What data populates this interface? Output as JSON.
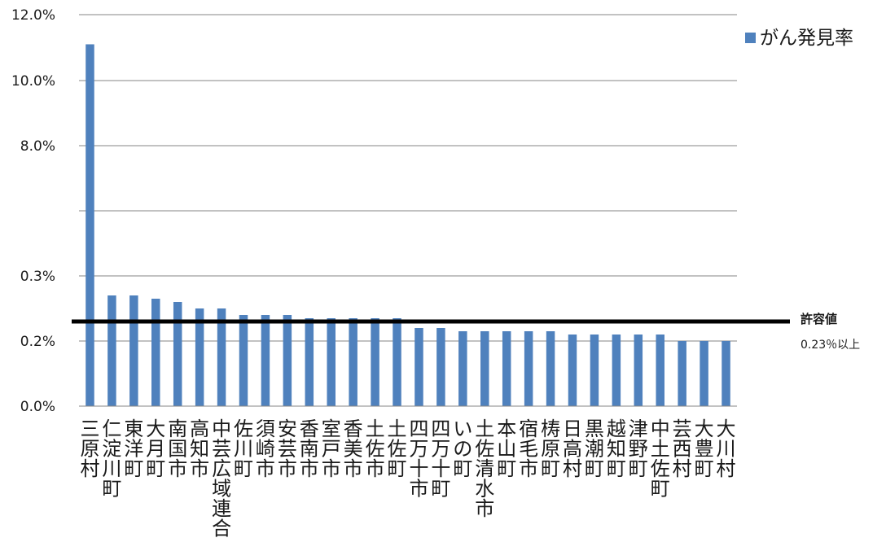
{
  "chart_data": {
    "type": "bar",
    "title": "",
    "xlabel": "",
    "ylabel": "",
    "y_axis": {
      "ticks": [
        "0.0%",
        "0.2%",
        "0.3%",
        "8.0%",
        "10.0%",
        "12.0%"
      ],
      "scale": "broken"
    },
    "grid": true,
    "legend_position": "top-right",
    "colors": {
      "bar": "#4f81bd",
      "threshold": "#000000",
      "grid": "#868686"
    },
    "series": [
      {
        "name": "がん発見率",
        "values": [
          11.1,
          0.27,
          0.27,
          0.265,
          0.26,
          0.25,
          0.25,
          0.24,
          0.24,
          0.24,
          0.235,
          0.235,
          0.235,
          0.235,
          0.235,
          0.22,
          0.22,
          0.215,
          0.215,
          0.215,
          0.215,
          0.215,
          0.21,
          0.21,
          0.21,
          0.21,
          0.21,
          0.2,
          0.2,
          0.2
        ]
      }
    ],
    "categories": [
      "三原村",
      "仁淀川町",
      "東洋町",
      "大月町",
      "南国市",
      "高知市",
      "中芸広域連合",
      "佐川町",
      "須崎市",
      "安芸市",
      "香南市",
      "室戸市",
      "香美市",
      "土佐市",
      "土佐町",
      "四万十市",
      "四万十町",
      "いの町",
      "土佐清水市",
      "本山町",
      "宿毛市",
      "梼原町",
      "日高村",
      "黒潮町",
      "越知町",
      "津野町",
      "中土佐町",
      "芸西村",
      "大豊町",
      "大川村"
    ],
    "threshold": {
      "value": 0.23,
      "label": "許容値",
      "note": "0.23％以上"
    }
  }
}
